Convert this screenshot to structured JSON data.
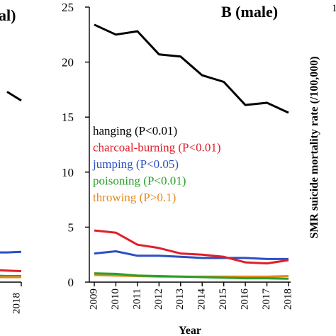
{
  "left_panel": {
    "title_fragment": "al)",
    "x_tick": "2018",
    "series": [
      {
        "name": "hanging",
        "color": "#000000",
        "x": [
          2017,
          2018
        ],
        "y": [
          17.3,
          16.5
        ]
      },
      {
        "name": "jumping",
        "color": "#2b4fc4",
        "x": [
          2016,
          2017,
          2018
        ],
        "y": [
          2.7,
          2.7,
          2.75
        ]
      },
      {
        "name": "charcoal-burning",
        "color": "#e0202a",
        "x": [
          2016,
          2017,
          2018
        ],
        "y": [
          1.1,
          1.05,
          1.0
        ]
      },
      {
        "name": "poisoning",
        "color": "#2aa02a",
        "x": [
          2016,
          2017,
          2018
        ],
        "y": [
          0.6,
          0.55,
          0.55
        ]
      },
      {
        "name": "throwing",
        "color": "#e38a1c",
        "x": [
          2016,
          2017,
          2018
        ],
        "y": [
          0.45,
          0.45,
          0.45
        ]
      }
    ]
  },
  "right_panel": {
    "ylabel": "SMR suicide mortality rate (/100,000)",
    "ytick_fragment": "1"
  },
  "chart_data": {
    "type": "line",
    "title": "B (male)",
    "xlabel": "Year",
    "ylabel": "SMR suicide mortality rate (/100,000)",
    "x": [
      2009,
      2010,
      2011,
      2012,
      2013,
      2014,
      2015,
      2016,
      2017,
      2018
    ],
    "x_ticks": [
      "2009",
      "2010",
      "2011",
      "2012",
      "2013",
      "2014",
      "2015",
      "2016",
      "2017",
      "2018"
    ],
    "ylim": [
      0,
      25
    ],
    "y_ticks": [
      "0",
      "5",
      "10",
      "15",
      "20",
      "25"
    ],
    "grid": false,
    "legend_position": "center-left",
    "series": [
      {
        "name": "hanging",
        "label": "hanging (P<0.01)",
        "color": "#000000",
        "values": [
          23.4,
          22.5,
          22.8,
          20.7,
          20.5,
          18.8,
          18.2,
          16.1,
          16.3,
          15.4
        ]
      },
      {
        "name": "charcoal-burning",
        "label": "charcoal-burning (P<0.01)",
        "color": "#e0202a",
        "values": [
          4.7,
          4.5,
          3.4,
          3.1,
          2.6,
          2.5,
          2.3,
          1.8,
          1.7,
          2.0
        ]
      },
      {
        "name": "jumping",
        "label": "jumping (P<0.05)",
        "color": "#2b4fc4",
        "values": [
          2.6,
          2.8,
          2.4,
          2.4,
          2.3,
          2.2,
          2.2,
          2.2,
          2.1,
          2.1
        ]
      },
      {
        "name": "poisoning",
        "label": "poisoning (P<0.01)",
        "color": "#2aa02a",
        "values": [
          0.8,
          0.75,
          0.6,
          0.55,
          0.5,
          0.45,
          0.4,
          0.35,
          0.35,
          0.3
        ]
      },
      {
        "name": "throwing",
        "label": "throwing (P>0.1)",
        "color": "#e38a1c",
        "values": [
          0.65,
          0.6,
          0.55,
          0.5,
          0.5,
          0.5,
          0.5,
          0.5,
          0.5,
          0.55
        ]
      }
    ]
  }
}
